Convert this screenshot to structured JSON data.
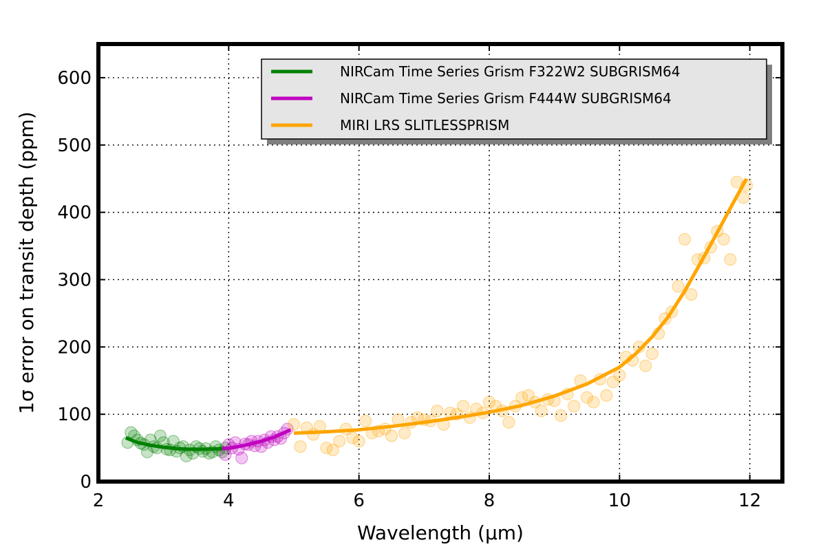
{
  "chart_data": {
    "type": "scatter",
    "title": "",
    "xlabel": "Wavelength (μm)",
    "ylabel": "1σ error on transit depth (ppm)",
    "xlim": [
      2,
      12.5
    ],
    "ylim": [
      0,
      650
    ],
    "xticks": [
      2,
      4,
      6,
      8,
      10,
      12
    ],
    "yticks": [
      0,
      100,
      200,
      300,
      400,
      500,
      600
    ],
    "xtick_labels": [
      "2",
      "4",
      "6",
      "8",
      "10",
      "12"
    ],
    "ytick_labels": [
      "0",
      "100",
      "200",
      "300",
      "400",
      "500",
      "600"
    ],
    "grid": true,
    "legend_position": "top-right",
    "series": [
      {
        "name": "NIRCam Time Series Grism F322W2 SUBGRISM64",
        "color": "#008000",
        "fit": {
          "x": [
            2.42,
            2.6,
            2.8,
            3.0,
            3.2,
            3.4,
            3.6,
            3.8,
            3.95
          ],
          "y": [
            65,
            58,
            54,
            51,
            49,
            48,
            48,
            48.5,
            49
          ]
        },
        "points": {
          "x": [
            2.45,
            2.5,
            2.55,
            2.6,
            2.65,
            2.7,
            2.75,
            2.8,
            2.85,
            2.9,
            2.95,
            3.0,
            3.05,
            3.1,
            3.15,
            3.2,
            3.25,
            3.3,
            3.35,
            3.4,
            3.45,
            3.5,
            3.55,
            3.6,
            3.65,
            3.7,
            3.75,
            3.8,
            3.85,
            3.9,
            3.95
          ],
          "y": [
            58,
            73,
            68,
            62,
            57,
            55,
            44,
            62,
            52,
            50,
            68,
            58,
            48,
            47,
            60,
            45,
            50,
            52,
            38,
            47,
            42,
            52,
            49,
            45,
            49,
            42,
            44,
            52,
            47,
            44,
            50
          ]
        }
      },
      {
        "name": "NIRCam Time Series Grism F444W SUBGRISM64",
        "color": "#bf00bf",
        "fit": {
          "x": [
            3.9,
            4.1,
            4.3,
            4.5,
            4.7,
            4.95
          ],
          "y": [
            49,
            51,
            55,
            60,
            66,
            77
          ]
        },
        "points": {
          "x": [
            3.95,
            4.0,
            4.05,
            4.1,
            4.15,
            4.2,
            4.25,
            4.3,
            4.35,
            4.4,
            4.45,
            4.5,
            4.55,
            4.6,
            4.65,
            4.7,
            4.75,
            4.8,
            4.85,
            4.9
          ],
          "y": [
            40,
            55,
            50,
            58,
            48,
            35,
            56,
            55,
            60,
            53,
            60,
            52,
            62,
            58,
            67,
            62,
            67,
            64,
            72,
            78
          ]
        }
      },
      {
        "name": "MIRI LRS SLITLESSPRISM",
        "color": "#ffa500",
        "fit": {
          "x": [
            5.0,
            5.5,
            6.0,
            6.5,
            7.0,
            7.5,
            8.0,
            8.5,
            9.0,
            9.5,
            10.0,
            10.25,
            10.5,
            10.75,
            11.0,
            11.25,
            11.5,
            11.75,
            11.95
          ],
          "y": [
            72,
            74,
            77,
            82,
            88,
            95,
            103,
            113,
            127,
            145,
            170,
            190,
            215,
            245,
            283,
            326,
            370,
            415,
            450
          ]
        },
        "points": {
          "x": [
            5.0,
            5.1,
            5.2,
            5.3,
            5.4,
            5.5,
            5.6,
            5.7,
            5.8,
            5.9,
            6.0,
            6.1,
            6.2,
            6.3,
            6.4,
            6.5,
            6.6,
            6.7,
            6.8,
            6.9,
            7.0,
            7.1,
            7.2,
            7.3,
            7.4,
            7.5,
            7.6,
            7.7,
            7.8,
            7.9,
            8.0,
            8.1,
            8.2,
            8.3,
            8.4,
            8.5,
            8.6,
            8.7,
            8.8,
            8.9,
            9.0,
            9.1,
            9.2,
            9.3,
            9.4,
            9.5,
            9.6,
            9.7,
            9.8,
            9.9,
            10.0,
            10.1,
            10.2,
            10.3,
            10.4,
            10.5,
            10.6,
            10.7,
            10.8,
            10.9,
            11.0,
            11.1,
            11.2,
            11.3,
            11.4,
            11.5,
            11.6,
            11.7,
            11.8,
            11.9,
            11.95
          ],
          "y": [
            85,
            52,
            80,
            70,
            82,
            50,
            47,
            60,
            78,
            65,
            60,
            90,
            72,
            75,
            78,
            68,
            92,
            72,
            88,
            95,
            92,
            90,
            105,
            85,
            102,
            100,
            112,
            95,
            108,
            102,
            118,
            112,
            105,
            88,
            112,
            125,
            128,
            118,
            105,
            122,
            120,
            98,
            130,
            112,
            150,
            125,
            118,
            152,
            128,
            148,
            158,
            185,
            180,
            200,
            172,
            190,
            220,
            242,
            252,
            290,
            360,
            278,
            330,
            332,
            348,
            372,
            360,
            330,
            445,
            422,
            440
          ]
        }
      }
    ]
  }
}
